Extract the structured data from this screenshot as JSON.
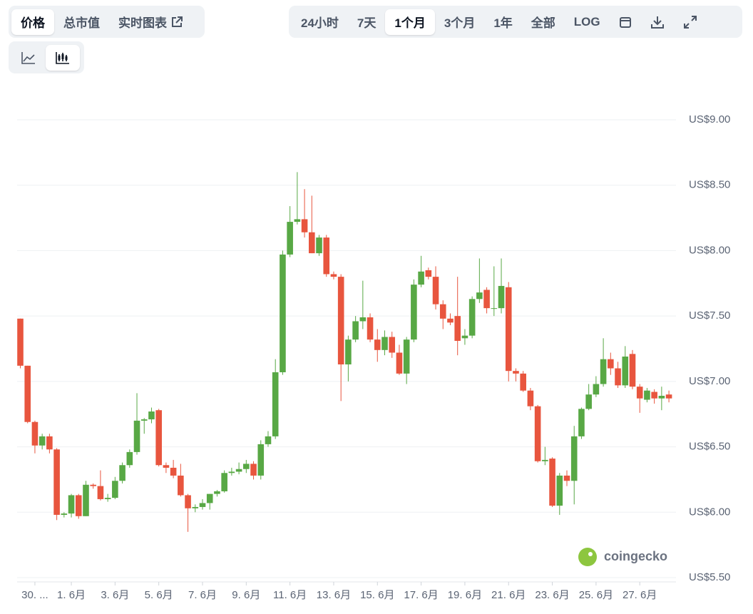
{
  "toolbar": {
    "left": [
      "价格",
      "总市值",
      "实时图表"
    ],
    "right": [
      "24小时",
      "7天",
      "1个月",
      "3个月",
      "1年",
      "全部",
      "LOG"
    ]
  },
  "watermark": "coingecko",
  "chart_data": {
    "type": "candlestick",
    "categories": [
      null,
      null,
      "30. ...",
      null,
      null,
      null,
      null,
      "1. 6月",
      null,
      null,
      null,
      null,
      null,
      "3. 6月",
      null,
      null,
      null,
      null,
      null,
      "5. 6月",
      null,
      null,
      null,
      null,
      null,
      "7. 6月",
      null,
      null,
      null,
      null,
      null,
      "9. 6月",
      null,
      null,
      null,
      null,
      null,
      "11. 6月",
      null,
      null,
      null,
      null,
      null,
      "13. 6月",
      null,
      null,
      null,
      null,
      null,
      "15. 6月",
      null,
      null,
      null,
      null,
      null,
      "17. 6月",
      null,
      null,
      null,
      null,
      null,
      "19. 6月",
      null,
      null,
      null,
      null,
      null,
      "21. 6月",
      null,
      null,
      null,
      null,
      null,
      "23. 6月",
      null,
      null,
      null,
      null,
      null,
      "25. 6月",
      null,
      null,
      null,
      null,
      null,
      "27. 6月",
      null,
      null,
      null,
      null
    ],
    "open": [
      7.48,
      7.12,
      6.69,
      6.51,
      6.58,
      6.48,
      5.98,
      5.99,
      6.13,
      5.97,
      6.21,
      6.2,
      6.1,
      6.11,
      6.24,
      6.36,
      6.46,
      6.7,
      6.71,
      6.78,
      6.36,
      6.34,
      6.28,
      6.13,
      6.03,
      6.04,
      6.07,
      6.14,
      6.16,
      6.3,
      6.31,
      6.33,
      6.37,
      6.28,
      6.52,
      6.58,
      7.07,
      7.97,
      8.22,
      8.24,
      8.14,
      7.98,
      8.1,
      7.82,
      7.8,
      7.13,
      7.32,
      7.46,
      7.49,
      7.32,
      7.24,
      7.34,
      7.22,
      7.06,
      7.32,
      7.74,
      7.85,
      7.8,
      7.59,
      7.48,
      7.5,
      7.33,
      7.35,
      7.63,
      7.7,
      7.56,
      7.56,
      7.72,
      7.08,
      7.06,
      6.93,
      6.81,
      6.39,
      6.41,
      6.05,
      6.28,
      6.24,
      6.58,
      6.79,
      6.9,
      6.98,
      7.17,
      7.1,
      6.97,
      7.21,
      6.96,
      6.86,
      6.92,
      6.87,
      6.9
    ],
    "high": [
      7.48,
      7.12,
      6.7,
      6.6,
      6.6,
      6.49,
      6.0,
      6.14,
      6.14,
      6.24,
      6.22,
      6.32,
      6.14,
      6.27,
      6.38,
      6.48,
      6.91,
      6.72,
      6.8,
      6.79,
      6.38,
      6.4,
      6.37,
      6.14,
      6.06,
      6.1,
      6.14,
      6.17,
      6.32,
      6.34,
      6.38,
      6.4,
      6.39,
      6.55,
      6.62,
      7.17,
      8.0,
      8.34,
      8.6,
      8.47,
      8.42,
      8.12,
      8.12,
      7.84,
      7.82,
      7.35,
      7.5,
      7.77,
      7.52,
      7.4,
      7.39,
      7.38,
      7.28,
      7.34,
      7.78,
      7.96,
      7.87,
      7.88,
      7.62,
      7.52,
      7.8,
      7.4,
      7.65,
      7.94,
      7.72,
      7.88,
      7.94,
      7.76,
      7.1,
      7.08,
      6.95,
      6.82,
      6.5,
      6.42,
      6.3,
      6.32,
      6.66,
      6.8,
      6.98,
      7.04,
      7.33,
      7.22,
      7.15,
      7.27,
      7.24,
      6.98,
      6.95,
      6.94,
      6.96,
      6.93
    ],
    "low": [
      7.1,
      6.68,
      6.45,
      6.48,
      6.45,
      5.94,
      5.96,
      5.96,
      5.95,
      5.97,
      6.18,
      6.09,
      6.08,
      6.1,
      6.22,
      6.34,
      6.44,
      6.6,
      6.68,
      6.35,
      6.3,
      6.26,
      6.12,
      5.85,
      6.0,
      6.02,
      6.02,
      6.12,
      6.15,
      6.28,
      6.29,
      6.3,
      6.25,
      6.25,
      6.5,
      6.56,
      7.05,
      7.95,
      8.2,
      8.1,
      7.98,
      7.96,
      7.8,
      7.78,
      6.85,
      7.0,
      7.3,
      7.4,
      7.3,
      7.15,
      7.2,
      7.18,
      7.05,
      6.98,
      7.3,
      7.72,
      7.78,
      7.55,
      7.4,
      7.43,
      7.2,
      7.28,
      7.33,
      7.6,
      7.52,
      7.5,
      7.52,
      7.0,
      7.0,
      6.92,
      6.78,
      6.38,
      6.36,
      6.04,
      5.98,
      6.2,
      6.06,
      6.56,
      6.78,
      6.88,
      6.96,
      7.05,
      6.95,
      6.95,
      6.94,
      6.76,
      6.84,
      6.83,
      6.78,
      6.84
    ],
    "close": [
      7.12,
      6.69,
      6.51,
      6.58,
      6.48,
      5.98,
      5.99,
      6.13,
      5.97,
      6.21,
      6.2,
      6.1,
      6.11,
      6.24,
      6.36,
      6.46,
      6.7,
      6.71,
      6.77,
      6.36,
      6.34,
      6.28,
      6.13,
      6.03,
      6.04,
      6.07,
      6.14,
      6.16,
      6.3,
      6.31,
      6.33,
      6.37,
      6.28,
      6.52,
      6.58,
      7.07,
      7.97,
      8.22,
      8.24,
      8.14,
      7.98,
      8.1,
      7.82,
      7.8,
      7.13,
      7.32,
      7.46,
      7.49,
      7.32,
      7.24,
      7.34,
      7.22,
      7.06,
      7.32,
      7.74,
      7.84,
      7.8,
      7.59,
      7.48,
      7.45,
      7.31,
      7.35,
      7.63,
      7.68,
      7.56,
      7.56,
      7.73,
      7.08,
      7.06,
      6.93,
      6.81,
      6.39,
      6.4,
      6.05,
      6.28,
      6.24,
      6.58,
      6.79,
      6.9,
      6.98,
      7.17,
      7.1,
      6.97,
      7.19,
      6.96,
      6.87,
      6.93,
      6.87,
      6.89,
      6.87
    ],
    "up_color": "#58a845",
    "down_color": "#e8553e",
    "ylim": [
      5.5,
      9.0
    ],
    "yticks": [
      {
        "value": 5.5,
        "label": "US$5.50"
      },
      {
        "value": 6,
        "label": "US$6.00"
      },
      {
        "value": 6.5,
        "label": "US$6.50"
      },
      {
        "value": 7,
        "label": "US$7.00"
      },
      {
        "value": 7.5,
        "label": "US$7.50"
      },
      {
        "value": 8,
        "label": "US$8.00"
      },
      {
        "value": 8.5,
        "label": "US$8.50"
      },
      {
        "value": 9,
        "label": "US$9.00"
      }
    ],
    "grid": true
  }
}
